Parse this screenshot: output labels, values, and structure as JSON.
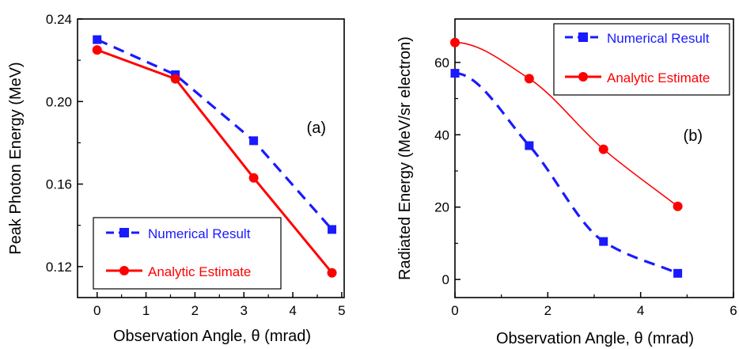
{
  "chart_data": [
    {
      "type": "line",
      "panel_label": "(a)",
      "xlabel": "Observation Angle, θ (mrad)",
      "ylabel": "Peak Photon Energy (MeV)",
      "xlim": [
        -0.4,
        5.05
      ],
      "ylim": [
        0.105,
        0.24
      ],
      "xticks": [
        0,
        1,
        2,
        3,
        4,
        5
      ],
      "xtick_labels": [
        "0",
        "1",
        "2",
        "3",
        "4",
        "5"
      ],
      "yticks": [
        0.12,
        0.16,
        0.2,
        0.24
      ],
      "ytick_labels": [
        "0.12",
        "0.16",
        "0.20",
        "0.24"
      ],
      "legend": "bottom-left",
      "grid": false,
      "series": [
        {
          "name": "Numerical Result",
          "color": "#1a1aff",
          "marker": "square",
          "line_style": "dashed",
          "x": [
            0,
            1.6,
            3.2,
            4.8
          ],
          "y": [
            0.23,
            0.213,
            0.181,
            0.138
          ]
        },
        {
          "name": "Analytic Estimate",
          "color": "#ff0000",
          "marker": "circle",
          "line_style": "solid",
          "x": [
            0,
            1.6,
            3.2,
            4.8
          ],
          "y": [
            0.225,
            0.211,
            0.163,
            0.117
          ]
        }
      ]
    },
    {
      "type": "line",
      "panel_label": "(b)",
      "xlabel": "Observation Angle, θ (mrad)",
      "ylabel": "Radiated Energy (MeV/sr electron)",
      "xlim": [
        0,
        6
      ],
      "ylim": [
        -5,
        72
      ],
      "xticks": [
        0,
        2,
        4,
        6
      ],
      "xtick_labels": [
        "0",
        "2",
        "4",
        "6"
      ],
      "yticks": [
        0,
        20,
        40,
        60
      ],
      "ytick_labels": [
        "0",
        "20",
        "40",
        "60"
      ],
      "legend": "top-right",
      "grid": false,
      "series": [
        {
          "name": "Numerical Result",
          "color": "#1a1aff",
          "marker": "square",
          "line_style": "dashed",
          "x": [
            0,
            1.6,
            3.2,
            4.8
          ],
          "y": [
            57,
            37,
            10.5,
            1.7
          ]
        },
        {
          "name": "Analytic Estimate",
          "color": "#ff0000",
          "marker": "circle",
          "line_style": "solid",
          "x": [
            0,
            1.6,
            3.2,
            4.8
          ],
          "y": [
            65.5,
            55.5,
            36,
            20.2
          ]
        }
      ]
    }
  ]
}
